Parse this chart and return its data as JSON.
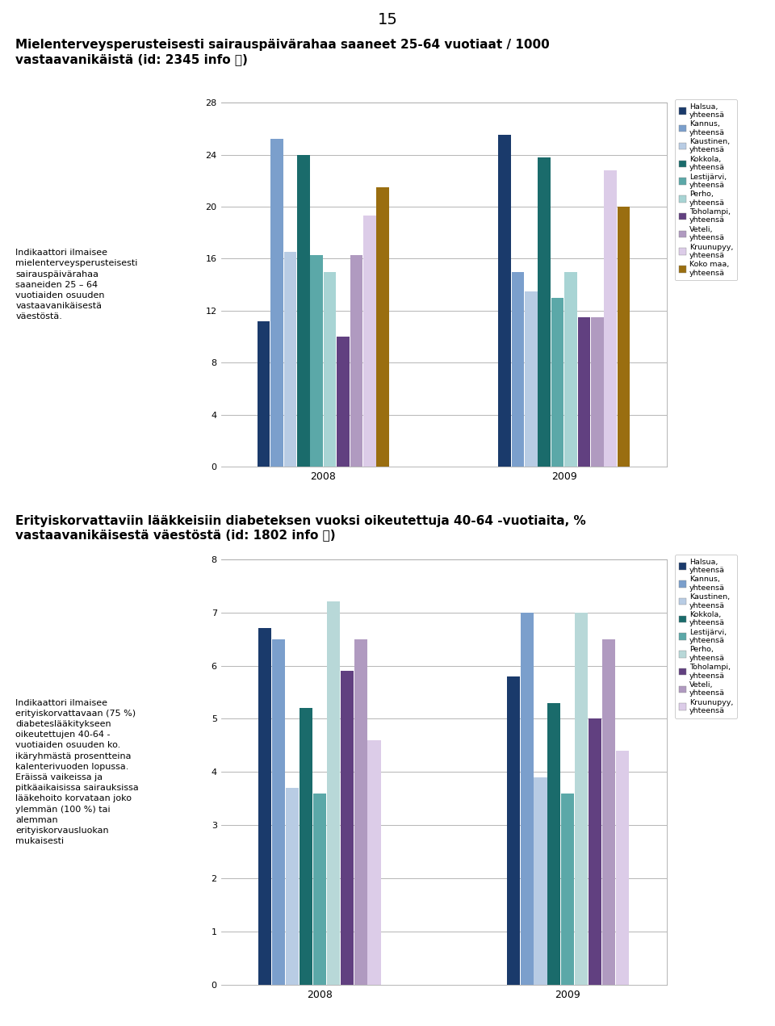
{
  "page_number": "15",
  "chart1": {
    "title": "Mielenterveysperusteisesti sairauspäivärahaa saaneet 25-64 vuotiaat / 1000\nvastaavanikäistä (id: 2345 info ⓘ)",
    "description": "Indikaattori ilmaisee\nmielenterveysperusteisesti\nsairauspäivärahaa\nsaaneiden 25 – 64\nvuotiaiden osuuden\nvastaavanikäisestä\nväestöstä.",
    "years": [
      2008,
      2009
    ],
    "series": [
      {
        "name": "Halsua,\nyhteensä",
        "values": [
          11.2,
          25.5
        ]
      },
      {
        "name": "Kannus,\nyhteensä",
        "values": [
          25.2,
          15.0
        ]
      },
      {
        "name": "Kaustinen,\nyhteensä",
        "values": [
          16.5,
          13.5
        ]
      },
      {
        "name": "Kokkola,\nyhteensä",
        "values": [
          24.0,
          23.8
        ]
      },
      {
        "name": "Lestijärvi,\nyhteensä",
        "values": [
          16.3,
          13.0
        ]
      },
      {
        "name": "Perho,\nyhteensä",
        "values": [
          15.0,
          15.0
        ]
      },
      {
        "name": "Toholampi,\nyhteensä",
        "values": [
          10.0,
          11.5
        ]
      },
      {
        "name": "Veteli,\nyhteensä",
        "values": [
          16.3,
          11.5
        ]
      },
      {
        "name": "Kruunupyy,\nyhteensä",
        "values": [
          19.3,
          22.8
        ]
      },
      {
        "name": "Koko maa,\nyhteensä",
        "values": [
          21.5,
          20.0
        ]
      }
    ],
    "colors": [
      "#1a3a6b",
      "#7b9fcc",
      "#b8cce4",
      "#1a6b6b",
      "#5ba8a8",
      "#a8d4d4",
      "#614080",
      "#b09ac0",
      "#dccce8",
      "#9a6e10"
    ],
    "ylim": [
      0,
      28
    ],
    "yticks": [
      0,
      4,
      8,
      12,
      16,
      20,
      24,
      28
    ]
  },
  "chart2": {
    "title": "Erityiskorvattaviin lääkkeisiin diabeteksen vuoksi oikeutettuja 40-64 -vuotiaita, %\nvastaavanikäisestä väestöstä (id: 1802 info ⓘ)",
    "description": "Indikaattori ilmaisee\nerityiskorvattavaan (75 %)\ndiabeteslääkitykseen\noikeutettujen 40-64 -\nvuotiaiden osuuden ko.\nikäryhmästä prosentteina\nkalenterivuoden lopussa.\nEräissä vaikeissa ja\npitkäaikaisissa sairauksissa\nlääkehoito korvataan joko\nylemmän (100 %) tai\nalemman\nerityiskorvausluokan\nmukaisesti",
    "years": [
      2008,
      2009
    ],
    "series": [
      {
        "name": "Halsua,\nyhteensä",
        "values": [
          6.7,
          5.8
        ]
      },
      {
        "name": "Kannus,\nyhteensä",
        "values": [
          6.5,
          7.0
        ]
      },
      {
        "name": "Kaustinen,\nyhteensä",
        "values": [
          3.7,
          3.9
        ]
      },
      {
        "name": "Kokkola,\nyhteensä",
        "values": [
          5.2,
          5.3
        ]
      },
      {
        "name": "Lestijärvi,\nyhteensä",
        "values": [
          3.6,
          3.6
        ]
      },
      {
        "name": "Perho,\nyhteensä",
        "values": [
          7.2,
          7.0
        ]
      },
      {
        "name": "Toholampi,\nyhteensä",
        "values": [
          5.9,
          5.0
        ]
      },
      {
        "name": "Veteli,\nyhteensä",
        "values": [
          6.5,
          6.5
        ]
      },
      {
        "name": "Kruunupyy,\nyhteensä",
        "values": [
          4.6,
          4.4
        ]
      }
    ],
    "colors": [
      "#1a3a6b",
      "#7b9fcc",
      "#b8cce4",
      "#1a6b6b",
      "#5ba8a8",
      "#b8d8d8",
      "#614080",
      "#b09ac0",
      "#dccce8"
    ],
    "ylim": [
      0,
      8
    ],
    "yticks": [
      0,
      1,
      2,
      3,
      4,
      5,
      6,
      7,
      8
    ]
  },
  "bg_color": "#ffffff",
  "text_color": "#000000",
  "font_size_title": 11,
  "font_size_body": 9,
  "font_size_page": 14
}
